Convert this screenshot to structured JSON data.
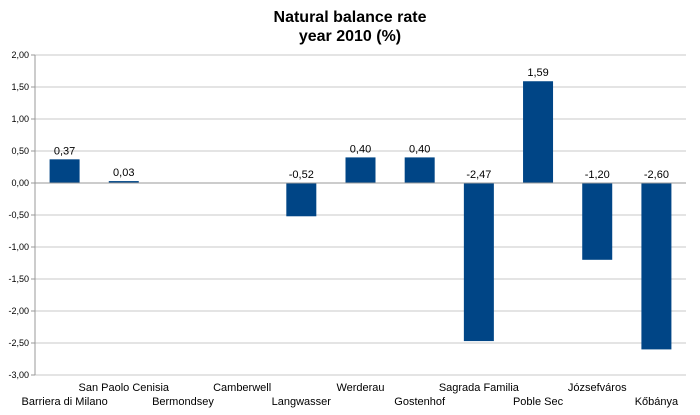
{
  "chart_data": {
    "type": "bar",
    "title_lines": [
      "Natural balance rate",
      "year 2010 (%)"
    ],
    "categories": [
      "Barriera di Milano",
      "San Paolo Cenisia",
      "Bermondsey",
      "Camberwell",
      "Langwasser",
      "Werderau",
      "Gostenhof",
      "Sagrada Familia",
      "Poble Sec",
      "Józsefváros",
      "Kőbánya"
    ],
    "values": [
      0.37,
      0.03,
      null,
      null,
      -0.52,
      0.4,
      0.4,
      -2.47,
      1.59,
      -1.2,
      -2.6
    ],
    "data_labels": [
      "0,37",
      "0,03",
      "",
      "",
      "-0,52",
      "0,40",
      "0,40",
      "-2,47",
      "1,59",
      "-1,20",
      "-2,60"
    ],
    "ylim": [
      -3.0,
      2.0
    ],
    "ytick_values": [
      2.0,
      1.5,
      1.0,
      0.5,
      0.0,
      -0.5,
      -1.0,
      -1.5,
      -2.0,
      -2.5,
      -3.0
    ],
    "ytick_labels": [
      "2,00",
      "1,50",
      "1,00",
      "0,50",
      "0,00",
      "-0,50",
      "-1,00",
      "-1,50",
      "-2,00",
      "-2,50",
      "-3,00"
    ],
    "grid": true,
    "bar_color": "#004586",
    "legend": "none"
  }
}
